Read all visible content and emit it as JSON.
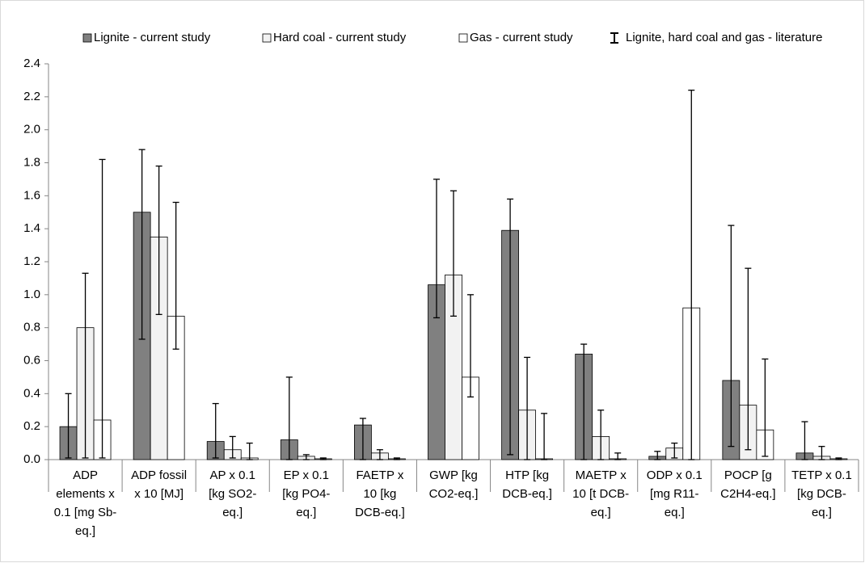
{
  "chart_data": {
    "type": "bar",
    "categories": [
      "ADP\nelements x\n0.1 [mg Sb-\neq.]",
      "ADP fossil\nx 10 [MJ]",
      "AP x 0.1\n[kg SO2-\neq.]",
      "EP x 0.1\n[kg PO4-\neq.]",
      "FAETP x\n10 [kg\nDCB-eq.]",
      "GWP [kg\nCO2-eq.]",
      "HTP [kg\nDCB-eq.]",
      "MAETP x\n10 [t DCB-\neq.]",
      "ODP x 0.1\n[mg R11-\neq.]",
      "POCP [g\nC2H4-eq.]",
      "TETP x 0.1\n[kg DCB-\neq.]"
    ],
    "series": [
      {
        "name": "Lignite - current study",
        "color": "#808080",
        "values": [
          0.2,
          1.5,
          0.11,
          0.12,
          0.21,
          1.06,
          1.39,
          0.64,
          0.02,
          0.48,
          0.04
        ],
        "err_low": [
          0.01,
          0.73,
          0.01,
          0.0,
          0.0,
          0.86,
          0.03,
          0.0,
          0.0,
          0.08,
          0.0
        ],
        "err_high": [
          0.4,
          1.88,
          0.34,
          0.5,
          0.25,
          1.7,
          1.58,
          0.7,
          0.05,
          1.42,
          0.23
        ]
      },
      {
        "name": "Hard coal - current study",
        "color": "#f2f2f2",
        "values": [
          0.8,
          1.35,
          0.06,
          0.02,
          0.04,
          1.12,
          0.3,
          0.14,
          0.07,
          0.33,
          0.02
        ],
        "err_low": [
          0.01,
          0.88,
          0.01,
          0.0,
          0.0,
          0.87,
          0.0,
          0.0,
          0.01,
          0.06,
          0.0
        ],
        "err_high": [
          1.13,
          1.78,
          0.14,
          0.03,
          0.06,
          1.63,
          0.62,
          0.3,
          0.1,
          1.16,
          0.08
        ]
      },
      {
        "name": "Gas - current study",
        "color": "#ffffff",
        "values": [
          0.24,
          0.87,
          0.01,
          0.005,
          0.005,
          0.5,
          0.005,
          0.005,
          0.92,
          0.18,
          0.005
        ],
        "err_low": [
          0.01,
          0.67,
          0.0,
          0.0,
          0.0,
          0.38,
          0.0,
          0.0,
          0.0,
          0.02,
          0.0
        ],
        "err_high": [
          1.82,
          1.56,
          0.1,
          0.01,
          0.01,
          1.0,
          0.28,
          0.04,
          2.24,
          0.61,
          0.01
        ]
      }
    ],
    "error_bar_label": "Lignite, hard coal and gas - literature",
    "ylim": [
      0,
      2.4
    ],
    "yticks": [
      {
        "value": 0,
        "label": "0.0"
      },
      0.2,
      0.4,
      0.6,
      0.8,
      {
        "value": 1,
        "label": "1.0"
      },
      1.2,
      1.4,
      1.6,
      1.8,
      {
        "value": 2,
        "label": "2.0"
      },
      2.2,
      2.4
    ],
    "grid": false,
    "legend": "top"
  }
}
